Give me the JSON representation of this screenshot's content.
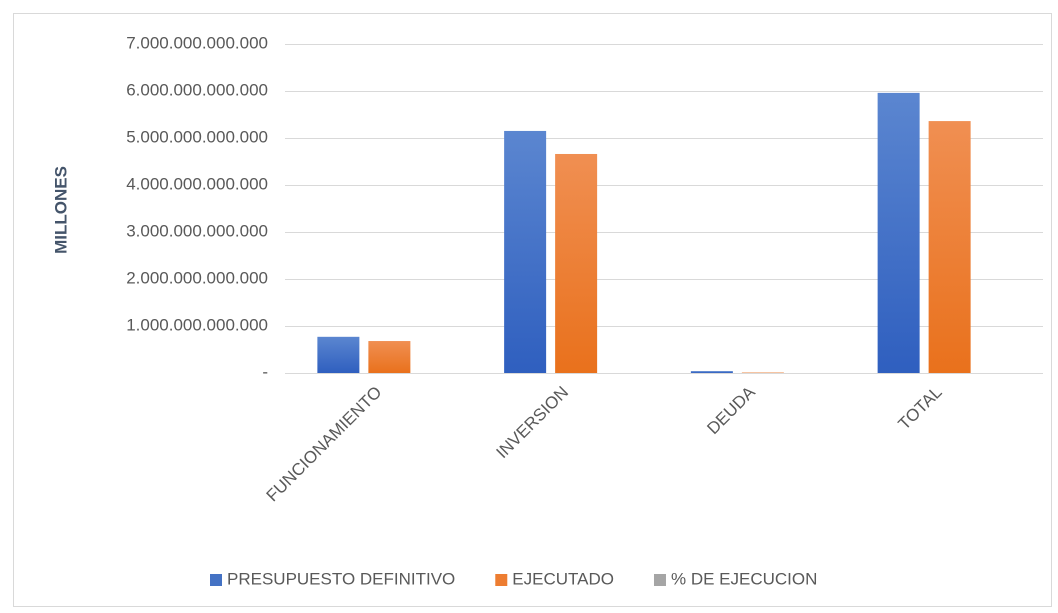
{
  "chart_data": {
    "type": "bar",
    "y_label": "MILLONES",
    "categories": [
      "FUNCIONAMIENTO",
      "INVERSION",
      "DEUDA",
      "TOTAL"
    ],
    "series": [
      {
        "name": "PRESUPUESTO DEFINITIVO",
        "color": "#4472c4",
        "values": [
          770000000000,
          5150000000000,
          40000000000,
          5960000000000
        ]
      },
      {
        "name": "EJECUTADO",
        "color": "#ed7d31",
        "values": [
          680000000000,
          4660000000000,
          10000000000,
          5360000000000
        ]
      },
      {
        "name": "% DE EJECUCION",
        "color": "#a5a5a5",
        "values": [
          0,
          0,
          0,
          0
        ]
      }
    ],
    "ylim": [
      0,
      7000000000000
    ],
    "yticks": [
      {
        "value": 0,
        "label": "-"
      },
      {
        "value": 1000000000000,
        "label": "1.000.000.000.000"
      },
      {
        "value": 2000000000000,
        "label": "2.000.000.000.000"
      },
      {
        "value": 3000000000000,
        "label": "3.000.000.000.000"
      },
      {
        "value": 4000000000000,
        "label": "4.000.000.000.000"
      },
      {
        "value": 5000000000000,
        "label": "5.000.000.000.000"
      },
      {
        "value": 6000000000000,
        "label": "6.000.000.000.000"
      },
      {
        "value": 7000000000000,
        "label": "7.000.000.000.000"
      }
    ],
    "grid": true,
    "legend": "bottom"
  }
}
